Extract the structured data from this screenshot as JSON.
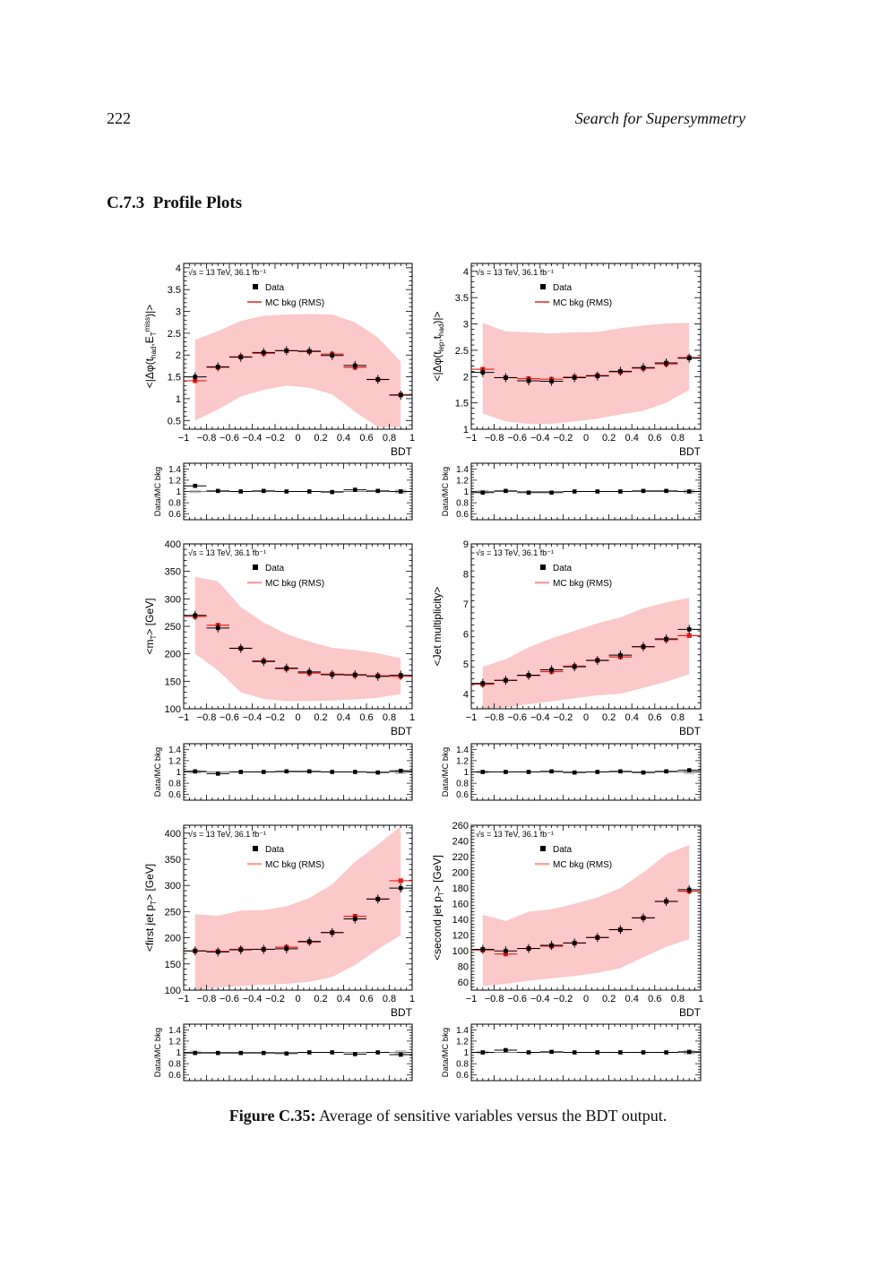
{
  "header": {
    "page_number": "222",
    "running_title": "Search for Supersymmetry"
  },
  "section": {
    "number": "C.7.3",
    "title": "Profile Plots"
  },
  "figure": {
    "label": "Figure C.35:",
    "caption": "Average of sensitive variables versus the BDT output."
  },
  "colors": {
    "band": "#fbc9c9",
    "mc": "#e8201a",
    "data": "#000000",
    "ratio_band": "#c9c9c9"
  },
  "chart_data": [
    {
      "type": "scatter",
      "ylabel": "<|Δφ(t_had,E_T^miss)|>",
      "xlabel": "BDT",
      "xlim": [
        -1,
        1
      ],
      "ylim": [
        0.3,
        4.1
      ],
      "yticks": [
        0.5,
        1,
        1.5,
        2,
        2.5,
        3,
        3.5,
        4
      ],
      "annotation": "√s = 13 TeV, 36.1 fb⁻¹",
      "legend": {
        "data": "Data",
        "mc": "MC bkg (RMS)",
        "position": "top-center"
      },
      "mc_style": "line",
      "x": [
        -0.9,
        -0.7,
        -0.5,
        -0.3,
        -0.1,
        0.1,
        0.3,
        0.5,
        0.7,
        0.9
      ],
      "data": [
        1.5,
        1.73,
        1.95,
        2.06,
        2.1,
        2.09,
        1.99,
        1.76,
        1.44,
        1.08
      ],
      "mc": [
        1.41,
        1.72,
        1.96,
        2.04,
        2.1,
        2.08,
        2.02,
        1.72,
        1.44,
        1.09
      ],
      "band_lo": [
        0.5,
        0.75,
        1.05,
        1.2,
        1.3,
        1.25,
        1.1,
        0.7,
        0.35,
        0.35
      ],
      "band_hi": [
        2.35,
        2.55,
        2.78,
        2.9,
        2.93,
        2.94,
        2.93,
        2.75,
        2.4,
        1.85
      ],
      "ratio": {
        "ylabel": "Data/MC bkg",
        "ylim": [
          0.5,
          1.5
        ],
        "yticks": [
          0.6,
          0.8,
          1,
          1.2,
          1.4
        ],
        "values": [
          1.1,
          1.01,
          1.0,
          1.01,
          1.0,
          1.0,
          0.99,
          1.03,
          1.01,
          1.0
        ]
      }
    },
    {
      "type": "scatter",
      "ylabel": "<|Δφ(t_lep,t_had)|>",
      "xlabel": "BDT",
      "xlim": [
        -1,
        1
      ],
      "ylim": [
        1,
        4.15
      ],
      "yticks": [
        1,
        1.5,
        2,
        2.5,
        3,
        3.5,
        4
      ],
      "annotation": "√s = 13 TeV, 36.1 fb⁻¹",
      "legend": {
        "data": "Data",
        "mc": "MC bkg (RMS)",
        "position": "top-center"
      },
      "mc_style": "line",
      "x": [
        -0.9,
        -0.7,
        -0.5,
        -0.3,
        -0.1,
        0.1,
        0.3,
        0.5,
        0.7,
        0.9
      ],
      "data": [
        2.08,
        1.98,
        1.92,
        1.91,
        1.98,
        2.01,
        2.1,
        2.17,
        2.26,
        2.35
      ],
      "mc": [
        2.14,
        1.98,
        1.96,
        1.95,
        1.99,
        2.02,
        2.09,
        2.16,
        2.24,
        2.36
      ],
      "band_lo": [
        1.3,
        1.15,
        1.1,
        1.1,
        1.15,
        1.2,
        1.28,
        1.35,
        1.5,
        1.75
      ],
      "band_hi": [
        3.02,
        2.86,
        2.84,
        2.82,
        2.84,
        2.85,
        2.92,
        2.97,
        3.01,
        3.02
      ],
      "ratio": {
        "ylabel": "Data/MC bkg",
        "ylim": [
          0.5,
          1.5
        ],
        "yticks": [
          0.6,
          0.8,
          1,
          1.2,
          1.4
        ],
        "values": [
          0.98,
          1.01,
          0.98,
          0.98,
          1.0,
          1.0,
          1.0,
          1.01,
          1.01,
          1.0
        ]
      }
    },
    {
      "type": "scatter",
      "ylabel": "<m_T> [GeV]",
      "xlabel": "BDT",
      "xlim": [
        -1,
        1
      ],
      "ylim": [
        100,
        400
      ],
      "yticks": [
        100,
        150,
        200,
        250,
        300,
        350,
        400
      ],
      "annotation": "√s = 13 TeV, 36.1 fb⁻¹",
      "legend": {
        "data": "Data",
        "mc": "MC bkg (RMS)",
        "position": "top-center"
      },
      "mc_style": "band",
      "x": [
        -0.9,
        -0.7,
        -0.5,
        -0.3,
        -0.1,
        0.1,
        0.3,
        0.5,
        0.7,
        0.9
      ],
      "data": [
        270,
        247,
        210,
        186,
        174,
        167,
        162,
        162,
        159,
        161
      ],
      "mc": [
        268,
        252,
        210,
        187,
        173,
        165,
        163,
        161,
        160,
        159
      ],
      "band_lo": [
        200,
        170,
        130,
        118,
        114,
        114,
        115,
        117,
        120,
        127
      ],
      "band_hi": [
        340,
        332,
        285,
        257,
        236,
        222,
        211,
        207,
        201,
        192
      ],
      "ratio": {
        "ylabel": "Data/MC bkg",
        "ylim": [
          0.5,
          1.5
        ],
        "yticks": [
          0.6,
          0.8,
          1,
          1.2,
          1.4
        ],
        "values": [
          1.01,
          0.97,
          1.0,
          1.0,
          1.01,
          1.01,
          1.0,
          1.0,
          0.99,
          1.02
        ]
      }
    },
    {
      "type": "scatter",
      "ylabel": "<Jet multiplicity>",
      "xlabel": "BDT",
      "xlim": [
        -1,
        1
      ],
      "ylim": [
        3.5,
        9
      ],
      "yticks": [
        4,
        5,
        6,
        7,
        8,
        9
      ],
      "annotation": "√s = 13 TeV, 36.1 fb⁻¹",
      "legend": {
        "data": "Data",
        "mc": "MC bkg (RMS)",
        "position": "top-center"
      },
      "mc_style": "band",
      "x": [
        -0.9,
        -0.7,
        -0.5,
        -0.3,
        -0.1,
        0.1,
        0.3,
        0.5,
        0.7,
        0.9
      ],
      "data": [
        4.35,
        4.45,
        4.62,
        4.8,
        4.9,
        5.11,
        5.29,
        5.57,
        5.83,
        6.15
      ],
      "mc": [
        4.32,
        4.45,
        4.61,
        4.74,
        4.92,
        5.12,
        5.23,
        5.57,
        5.81,
        5.94
      ],
      "band_lo": [
        3.5,
        3.55,
        3.65,
        3.75,
        3.85,
        3.95,
        4.0,
        4.2,
        4.4,
        4.65
      ],
      "band_hi": [
        4.9,
        5.15,
        5.55,
        5.85,
        6.1,
        6.35,
        6.55,
        6.85,
        7.05,
        7.2
      ],
      "ratio": {
        "ylabel": "Data/MC bkg",
        "ylim": [
          0.5,
          1.5
        ],
        "yticks": [
          0.6,
          0.8,
          1,
          1.2,
          1.4
        ],
        "values": [
          1.0,
          1.0,
          1.0,
          1.01,
          0.99,
          1.0,
          1.01,
          0.99,
          1.01,
          1.03
        ]
      }
    },
    {
      "type": "scatter",
      "ylabel": "<first jet p_T> [GeV]",
      "xlabel": "BDT",
      "xlim": [
        -1,
        1
      ],
      "ylim": [
        100,
        415
      ],
      "yticks": [
        100,
        150,
        200,
        250,
        300,
        350,
        400
      ],
      "annotation": "√s = 13 TeV, 36.1 fb⁻¹",
      "legend": {
        "data": "Data",
        "mc": "MC bkg (RMS)",
        "position": "top-center"
      },
      "mc_style": "band",
      "x": [
        -0.9,
        -0.7,
        -0.5,
        -0.3,
        -0.1,
        0.1,
        0.3,
        0.5,
        0.7,
        0.9
      ],
      "data": [
        175,
        173,
        177,
        178,
        179,
        193,
        210,
        236,
        274,
        295
      ],
      "mc": [
        175,
        174,
        178,
        178,
        182,
        192,
        210,
        241,
        274,
        309
      ],
      "band_lo": [
        100,
        105,
        108,
        110,
        112,
        116,
        125,
        148,
        178,
        205
      ],
      "band_hi": [
        245,
        242,
        252,
        253,
        260,
        276,
        302,
        345,
        378,
        413
      ],
      "ratio": {
        "ylabel": "Data/MC bkg",
        "ylim": [
          0.5,
          1.5
        ],
        "yticks": [
          0.6,
          0.8,
          1,
          1.2,
          1.4
        ],
        "values": [
          0.99,
          0.99,
          0.99,
          0.99,
          0.98,
          1.0,
          1.0,
          0.97,
          1.0,
          0.96
        ]
      }
    },
    {
      "type": "scatter",
      "ylabel": "<second jet p_T> [GeV]",
      "xlabel": "BDT",
      "xlim": [
        -1,
        1
      ],
      "ylim": [
        50,
        260
      ],
      "yticks": [
        60,
        80,
        100,
        120,
        140,
        160,
        180,
        200,
        220,
        240,
        260
      ],
      "annotation": "√s = 13 TeV, 36.1 fb⁻¹",
      "legend": {
        "data": "Data",
        "mc": "MC bkg (RMS)",
        "position": "top-center"
      },
      "mc_style": "band",
      "x": [
        -0.9,
        -0.7,
        -0.5,
        -0.3,
        -0.1,
        0.1,
        0.3,
        0.5,
        0.7,
        0.9
      ],
      "data": [
        102,
        100,
        103,
        107,
        110,
        117,
        127,
        142,
        163,
        178
      ],
      "mc": [
        101,
        96,
        103,
        106,
        110,
        117,
        127,
        142,
        163,
        176
      ],
      "band_lo": [
        55,
        58,
        62,
        65,
        68,
        72,
        78,
        92,
        105,
        115
      ],
      "band_hi": [
        146,
        138,
        150,
        153,
        160,
        168,
        180,
        200,
        223,
        235
      ],
      "ratio": {
        "ylabel": "Data/MC bkg",
        "ylim": [
          0.5,
          1.5
        ],
        "yticks": [
          0.6,
          0.8,
          1,
          1.2,
          1.4
        ],
        "values": [
          1.0,
          1.04,
          1.0,
          1.01,
          1.0,
          1.0,
          1.0,
          1.0,
          1.0,
          1.01
        ]
      }
    }
  ]
}
